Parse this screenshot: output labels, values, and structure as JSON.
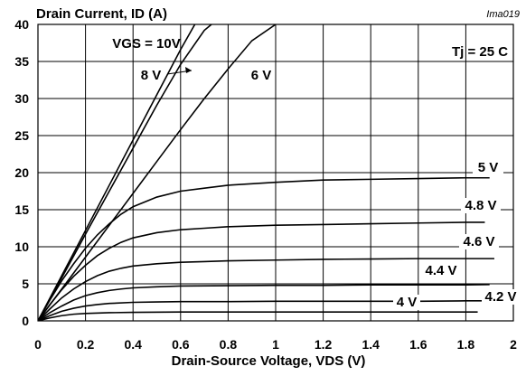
{
  "chart_data": {
    "type": "line",
    "title": "Drain Current, ID (A)",
    "xlabel": "Drain-Source Voltage, VDS (V)",
    "ylabel": "Drain Current, ID (A)",
    "xlim": [
      0,
      2
    ],
    "ylim": [
      0,
      40
    ],
    "x_ticks": [
      "0",
      "0.2",
      "0.4",
      "0.6",
      "0.8",
      "1",
      "1.2",
      "1.4",
      "1.6",
      "1.8",
      "2"
    ],
    "y_ticks": [
      "0",
      "5",
      "10",
      "15",
      "20",
      "25",
      "30",
      "35",
      "40"
    ],
    "grid": true,
    "annotations": {
      "corner_tag": "Ima019",
      "temperature": "Tj = 25 C"
    },
    "series": [
      {
        "name": "VGS = 10V",
        "points": [
          [
            0,
            0
          ],
          [
            0.1,
            6.1
          ],
          [
            0.2,
            12.2
          ],
          [
            0.3,
            18.3
          ],
          [
            0.4,
            24.4
          ],
          [
            0.5,
            30.5
          ],
          [
            0.6,
            36.6
          ],
          [
            0.66,
            40
          ]
        ]
      },
      {
        "name": "8 V",
        "points": [
          [
            0,
            0
          ],
          [
            0.1,
            5.8
          ],
          [
            0.2,
            11.7
          ],
          [
            0.3,
            17.5
          ],
          [
            0.4,
            23.3
          ],
          [
            0.5,
            29.1
          ],
          [
            0.6,
            34.6
          ],
          [
            0.7,
            39.2
          ],
          [
            0.73,
            40
          ]
        ]
      },
      {
        "name": "6 V",
        "points": [
          [
            0,
            0
          ],
          [
            0.1,
            4.3
          ],
          [
            0.2,
            8.6
          ],
          [
            0.3,
            12.9
          ],
          [
            0.4,
            17.2
          ],
          [
            0.5,
            21.5
          ],
          [
            0.6,
            25.8
          ],
          [
            0.7,
            30
          ],
          [
            0.8,
            34
          ],
          [
            0.9,
            37.8
          ],
          [
            1.0,
            40
          ]
        ]
      },
      {
        "name": "5 V",
        "points": [
          [
            0,
            0
          ],
          [
            0.05,
            2.8
          ],
          [
            0.1,
            5.4
          ],
          [
            0.15,
            7.7
          ],
          [
            0.2,
            9.8
          ],
          [
            0.25,
            11.6
          ],
          [
            0.3,
            13.1
          ],
          [
            0.35,
            14.4
          ],
          [
            0.4,
            15.4
          ],
          [
            0.5,
            16.7
          ],
          [
            0.6,
            17.5
          ],
          [
            0.7,
            17.9
          ],
          [
            0.8,
            18.3
          ],
          [
            1.0,
            18.7
          ],
          [
            1.2,
            19.0
          ],
          [
            1.4,
            19.1
          ],
          [
            1.6,
            19.2
          ],
          [
            1.8,
            19.3
          ],
          [
            1.9,
            19.3
          ]
        ]
      },
      {
        "name": "4.8 V",
        "points": [
          [
            0,
            0
          ],
          [
            0.05,
            2.2
          ],
          [
            0.1,
            4.2
          ],
          [
            0.15,
            6.0
          ],
          [
            0.2,
            7.5
          ],
          [
            0.25,
            8.8
          ],
          [
            0.3,
            9.8
          ],
          [
            0.35,
            10.6
          ],
          [
            0.4,
            11.2
          ],
          [
            0.5,
            11.9
          ],
          [
            0.6,
            12.3
          ],
          [
            0.7,
            12.5
          ],
          [
            0.8,
            12.7
          ],
          [
            1.0,
            12.9
          ],
          [
            1.2,
            13.0
          ],
          [
            1.4,
            13.1
          ],
          [
            1.6,
            13.2
          ],
          [
            1.8,
            13.3
          ],
          [
            1.88,
            13.3
          ]
        ]
      },
      {
        "name": "4.6 V",
        "points": [
          [
            0,
            0
          ],
          [
            0.05,
            1.6
          ],
          [
            0.1,
            3.1
          ],
          [
            0.15,
            4.3
          ],
          [
            0.2,
            5.3
          ],
          [
            0.25,
            6.1
          ],
          [
            0.3,
            6.7
          ],
          [
            0.35,
            7.1
          ],
          [
            0.4,
            7.4
          ],
          [
            0.5,
            7.7
          ],
          [
            0.6,
            7.9
          ],
          [
            0.7,
            8.0
          ],
          [
            0.8,
            8.1
          ],
          [
            1.0,
            8.2
          ],
          [
            1.2,
            8.3
          ],
          [
            1.4,
            8.35
          ],
          [
            1.6,
            8.4
          ],
          [
            1.8,
            8.4
          ],
          [
            1.92,
            8.4
          ]
        ]
      },
      {
        "name": "4.4 V",
        "points": [
          [
            0,
            0
          ],
          [
            0.05,
            1.1
          ],
          [
            0.1,
            2.0
          ],
          [
            0.15,
            2.8
          ],
          [
            0.2,
            3.4
          ],
          [
            0.25,
            3.8
          ],
          [
            0.3,
            4.1
          ],
          [
            0.35,
            4.3
          ],
          [
            0.4,
            4.45
          ],
          [
            0.5,
            4.6
          ],
          [
            0.6,
            4.7
          ],
          [
            0.8,
            4.75
          ],
          [
            1.0,
            4.8
          ],
          [
            1.2,
            4.8
          ],
          [
            1.4,
            4.85
          ],
          [
            1.6,
            4.85
          ],
          [
            1.8,
            4.85
          ],
          [
            1.9,
            4.9
          ]
        ]
      },
      {
        "name": "4.2 V",
        "points": [
          [
            0,
            0
          ],
          [
            0.05,
            0.7
          ],
          [
            0.1,
            1.3
          ],
          [
            0.15,
            1.7
          ],
          [
            0.2,
            2.0
          ],
          [
            0.25,
            2.2
          ],
          [
            0.3,
            2.35
          ],
          [
            0.4,
            2.5
          ],
          [
            0.5,
            2.55
          ],
          [
            0.6,
            2.6
          ],
          [
            0.8,
            2.6
          ],
          [
            1.0,
            2.65
          ],
          [
            1.2,
            2.65
          ],
          [
            1.4,
            2.65
          ],
          [
            1.6,
            2.65
          ],
          [
            1.8,
            2.7
          ],
          [
            1.88,
            2.7
          ]
        ]
      },
      {
        "name": "4 V",
        "points": [
          [
            0,
            0
          ],
          [
            0.05,
            0.4
          ],
          [
            0.1,
            0.7
          ],
          [
            0.15,
            0.9
          ],
          [
            0.2,
            1.0
          ],
          [
            0.3,
            1.1
          ],
          [
            0.4,
            1.15
          ],
          [
            0.6,
            1.2
          ],
          [
            0.8,
            1.2
          ],
          [
            1.0,
            1.2
          ],
          [
            1.2,
            1.2
          ],
          [
            1.4,
            1.2
          ],
          [
            1.6,
            1.2
          ],
          [
            1.8,
            1.2
          ],
          [
            1.85,
            1.2
          ]
        ]
      }
    ]
  }
}
